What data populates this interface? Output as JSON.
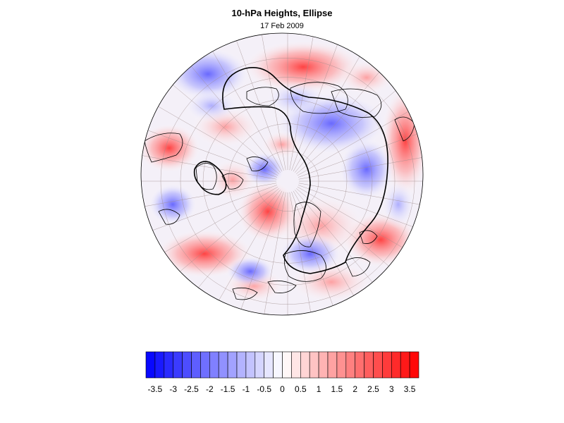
{
  "title": "10-hPa Heights, Ellipse",
  "subtitle": "17 Feb 2009",
  "map": {
    "projection": "orthographic, north-polar view",
    "field": "10-hPa geopotential height anomaly",
    "grid": "graticule on",
    "coastlines": true,
    "overlay": "polar vortex ellipse outline",
    "colors": {
      "negative": "#0000ff",
      "zero": "#ffffff",
      "positive": "#ff0000"
    }
  },
  "colorbar": {
    "min": -3.75,
    "max": 3.75,
    "step": 0.25,
    "ticks": [
      "-3.5",
      "-3",
      "-2.5",
      "-2",
      "-1.5",
      "-1",
      "-0.5",
      "0",
      "0.5",
      "1",
      "1.5",
      "2",
      "2.5",
      "3",
      "3.5"
    ]
  }
}
